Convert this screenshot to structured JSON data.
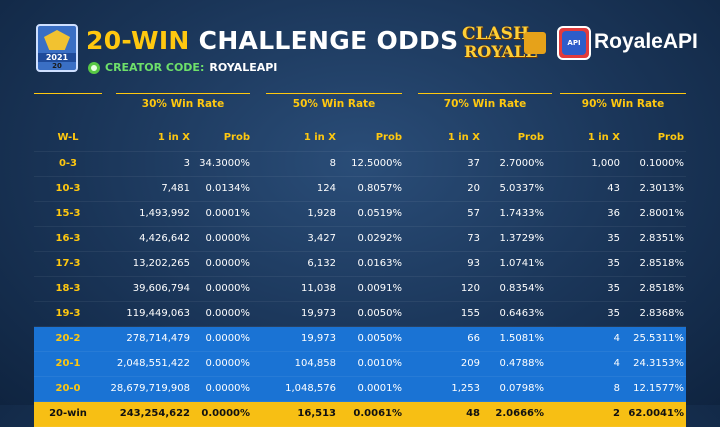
{
  "badge": {
    "year": "2021",
    "num": "20"
  },
  "title": {
    "accent": "20-WIN",
    "rest": "CHALLENGE ODDS"
  },
  "creator": {
    "label": "CREATOR CODE:",
    "code": "ROYALEAPI"
  },
  "logos": {
    "clash_line1": "CLASH",
    "clash_line2": "ROYALE",
    "api_badge": "API",
    "api_name": "RoyaleAPI"
  },
  "table": {
    "groups": [
      "30% Win Rate",
      "50% Win Rate",
      "70% Win Rate",
      "90% Win Rate"
    ],
    "columns": [
      "W-L",
      "1 in X",
      "Prob",
      "1 in X",
      "Prob",
      "1 in X",
      "Prob",
      "1 in X",
      "Prob"
    ],
    "rows": [
      {
        "style": "plain",
        "cells": [
          "0-3",
          "3",
          "34.3000%",
          "8",
          "12.5000%",
          "37",
          "2.7000%",
          "1,000",
          "0.1000%"
        ]
      },
      {
        "style": "plain",
        "cells": [
          "10-3",
          "7,481",
          "0.0134%",
          "124",
          "0.8057%",
          "20",
          "5.0337%",
          "43",
          "2.3013%"
        ]
      },
      {
        "style": "plain",
        "cells": [
          "15-3",
          "1,493,992",
          "0.0001%",
          "1,928",
          "0.0519%",
          "57",
          "1.7433%",
          "36",
          "2.8001%"
        ]
      },
      {
        "style": "plain",
        "cells": [
          "16-3",
          "4,426,642",
          "0.0000%",
          "3,427",
          "0.0292%",
          "73",
          "1.3729%",
          "35",
          "2.8351%"
        ]
      },
      {
        "style": "plain",
        "cells": [
          "17-3",
          "13,202,265",
          "0.0000%",
          "6,132",
          "0.0163%",
          "93",
          "1.0741%",
          "35",
          "2.8518%"
        ]
      },
      {
        "style": "plain",
        "cells": [
          "18-3",
          "39,606,794",
          "0.0000%",
          "11,038",
          "0.0091%",
          "120",
          "0.8354%",
          "35",
          "2.8518%"
        ]
      },
      {
        "style": "plain",
        "cells": [
          "19-3",
          "119,449,063",
          "0.0000%",
          "19,973",
          "0.0050%",
          "155",
          "0.6463%",
          "35",
          "2.8368%"
        ]
      },
      {
        "style": "blue",
        "cells": [
          "20-2",
          "278,714,479",
          "0.0000%",
          "19,973",
          "0.0050%",
          "66",
          "1.5081%",
          "4",
          "25.5311%"
        ]
      },
      {
        "style": "blue",
        "cells": [
          "20-1",
          "2,048,551,422",
          "0.0000%",
          "104,858",
          "0.0010%",
          "209",
          "0.4788%",
          "4",
          "24.3153%"
        ]
      },
      {
        "style": "blue",
        "cells": [
          "20-0",
          "28,679,719,908",
          "0.0000%",
          "1,048,576",
          "0.0001%",
          "1,253",
          "0.0798%",
          "8",
          "12.1577%"
        ]
      },
      {
        "style": "gold",
        "cells": [
          "20-win",
          "243,254,622",
          "0.0000%",
          "16,513",
          "0.0061%",
          "48",
          "2.0666%",
          "2",
          "62.0041%"
        ]
      }
    ]
  }
}
